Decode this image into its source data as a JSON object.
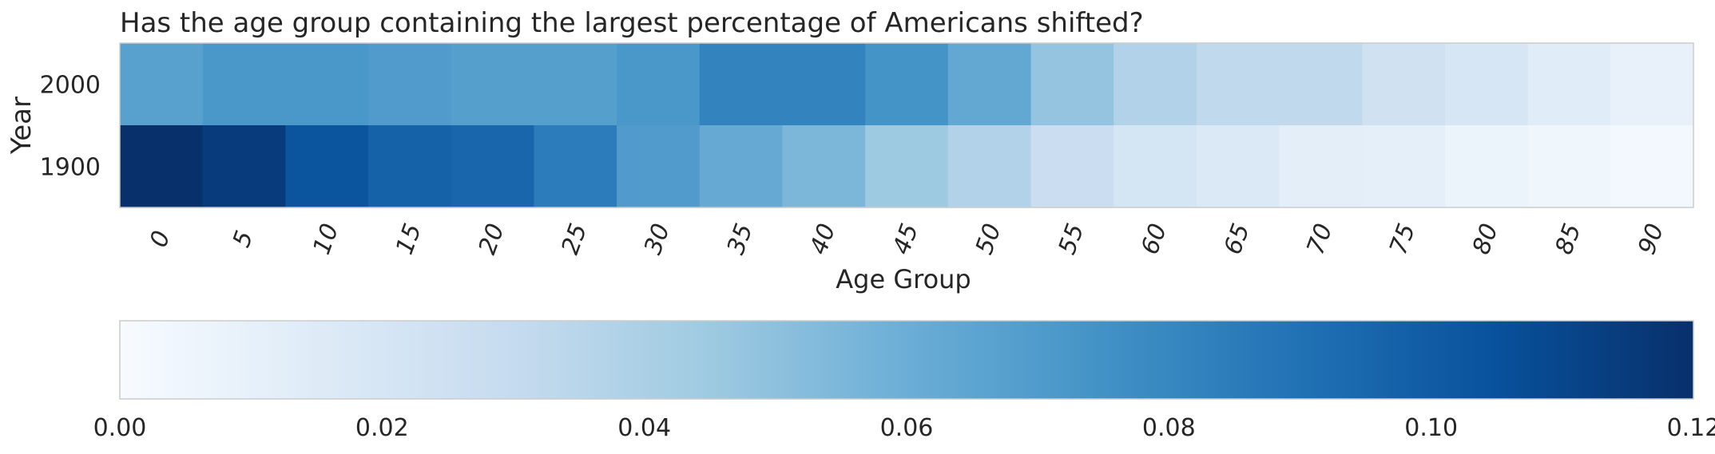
{
  "chart_data": {
    "type": "heatmap",
    "title": "Has the age group containing the largest percentage of Americans shifted?",
    "xlabel": "Age Group",
    "ylabel": "Year",
    "x_categories": [
      "0",
      "5",
      "10",
      "15",
      "20",
      "25",
      "30",
      "35",
      "40",
      "45",
      "50",
      "55",
      "60",
      "65",
      "70",
      "75",
      "80",
      "85",
      "90"
    ],
    "y_categories": [
      "2000",
      "1900"
    ],
    "values": [
      [
        0.067,
        0.072,
        0.072,
        0.07,
        0.068,
        0.068,
        0.072,
        0.082,
        0.082,
        0.074,
        0.063,
        0.048,
        0.038,
        0.032,
        0.032,
        0.024,
        0.02,
        0.014,
        0.009
      ],
      [
        0.12,
        0.115,
        0.103,
        0.097,
        0.095,
        0.085,
        0.07,
        0.062,
        0.055,
        0.045,
        0.038,
        0.027,
        0.021,
        0.017,
        0.012,
        0.011,
        0.007,
        0.005,
        0.003
      ]
    ],
    "colormap": "Blues",
    "colorbar": {
      "orientation": "horizontal",
      "placement": "bottom",
      "range": [
        0.0,
        0.12
      ],
      "ticks": [
        "0.00",
        "0.02",
        "0.04",
        "0.06",
        "0.08",
        "0.10",
        "0.12"
      ]
    },
    "grid": false,
    "colors": {
      "blues_stops": [
        "#f7fbff",
        "#deebf7",
        "#c6dbef",
        "#9ecae1",
        "#6baed6",
        "#4292c6",
        "#2171b5",
        "#08519c",
        "#08306b"
      ],
      "frame": "#cccccc",
      "text": "#262626"
    }
  }
}
